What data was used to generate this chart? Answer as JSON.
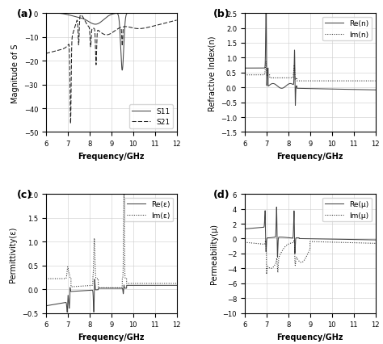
{
  "freq_range": [
    6,
    12
  ],
  "panel_labels": [
    "(a)",
    "(b)",
    "(c)",
    "(d)"
  ],
  "subplot_a": {
    "ylabel": "Magnitude of S",
    "xlabel": "Frequency/GHz",
    "ylim": [
      -50,
      0
    ],
    "legend": [
      "S11",
      "S21"
    ]
  },
  "subplot_b": {
    "ylabel": "Refractive Index(n)",
    "xlabel": "Frequency/GHz",
    "ylim": [
      -1.5,
      2.5
    ],
    "legend": [
      "Re(n)",
      "Im(n)"
    ]
  },
  "subplot_c": {
    "ylabel": "Permittivity(ε)",
    "xlabel": "Frequency/GHz",
    "ylim": [
      -0.5,
      2.0
    ],
    "legend": [
      "Re(ε)",
      "Im(ε)"
    ]
  },
  "subplot_d": {
    "ylabel": "Permeability(μ)",
    "xlabel": "Frequency/GHz",
    "ylim": [
      -10,
      6
    ],
    "legend": [
      "Re(μ)",
      "Im(μ)"
    ]
  },
  "line_color_solid": "#444444",
  "line_color_dashed": "#222222",
  "bg_color": "#ffffff",
  "grid_color": "#cccccc",
  "fontsize_label": 7,
  "fontsize_tick": 6,
  "fontsize_legend": 6.5,
  "fontsize_panel": 9
}
